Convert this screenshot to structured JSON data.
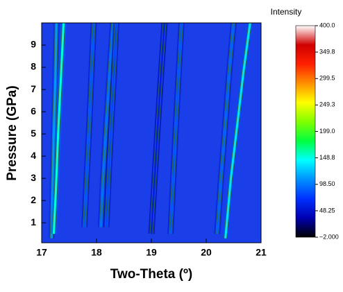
{
  "chart_data": {
    "type": "contour",
    "xlabel": "Two-Theta (º)",
    "ylabel": "Pressure (GPa)",
    "xlim": [
      17,
      21
    ],
    "xticks": [
      17,
      18,
      19,
      20,
      21
    ],
    "ylim": [
      0.1,
      10
    ],
    "yticks": [
      1,
      2,
      3,
      4,
      5,
      6,
      7,
      8,
      9
    ],
    "series": [
      {
        "x": [
          17.18,
          17.2,
          17.22,
          17.25,
          17.27
        ],
        "y": [
          0.3,
          2.5,
          5,
          7.5,
          10
        ],
        "intensity": 110
      },
      {
        "x": [
          17.22,
          17.26,
          17.3,
          17.35,
          17.4
        ],
        "y": [
          0.5,
          2.5,
          5,
          7.5,
          10
        ],
        "intensity": 150
      },
      {
        "x": [
          17.78,
          17.82,
          17.87,
          17.91,
          17.95
        ],
        "y": [
          0.8,
          3,
          5.5,
          7.8,
          10
        ],
        "intensity": 85
      },
      {
        "x": [
          18.08,
          18.12,
          18.18,
          18.24,
          18.3
        ],
        "y": [
          0.8,
          3,
          5.5,
          7.8,
          10
        ],
        "intensity": 95
      },
      {
        "x": [
          18.18,
          18.22,
          18.27,
          18.32,
          18.36
        ],
        "y": [
          0.8,
          3,
          5.5,
          7.8,
          10
        ],
        "intensity": 80
      },
      {
        "x": [
          19.0,
          19.06,
          19.12,
          19.18,
          19.24
        ],
        "y": [
          0.5,
          3,
          5.5,
          7.8,
          10
        ],
        "intensity": 60
      },
      {
        "x": [
          19.35,
          19.4,
          19.45,
          19.5,
          19.55
        ],
        "y": [
          0.5,
          3,
          5.5,
          7.8,
          10
        ],
        "intensity": 85
      },
      {
        "x": [
          20.2,
          20.27,
          20.35,
          20.42,
          20.5
        ],
        "y": [
          0.5,
          3,
          5.5,
          7.8,
          10
        ],
        "intensity": 90
      },
      {
        "x": [
          20.35,
          20.45,
          20.57,
          20.68,
          20.8
        ],
        "y": [
          0.3,
          3,
          5.5,
          7.8,
          10
        ],
        "intensity": 135
      }
    ],
    "colorbar": {
      "title": "Intensity",
      "lim": [
        -2,
        400
      ],
      "ticks": [
        {
          "value": 400,
          "label": "400.0"
        },
        349.8,
        299.5,
        249.3,
        {
          "value": 199,
          "label": "199.0"
        },
        148.8,
        {
          "value": 98.5,
          "label": "98.50"
        },
        48.25,
        {
          "value": -2,
          "label": "−2.000"
        }
      ],
      "colormap": [
        "#000000",
        "#0000b0",
        "#0030ff",
        "#0090ff",
        "#00ffff",
        "#00ff40",
        "#80ff00",
        "#ffff00",
        "#ff9000",
        "#ff2000",
        "#d00000",
        "#ffffff"
      ]
    }
  }
}
